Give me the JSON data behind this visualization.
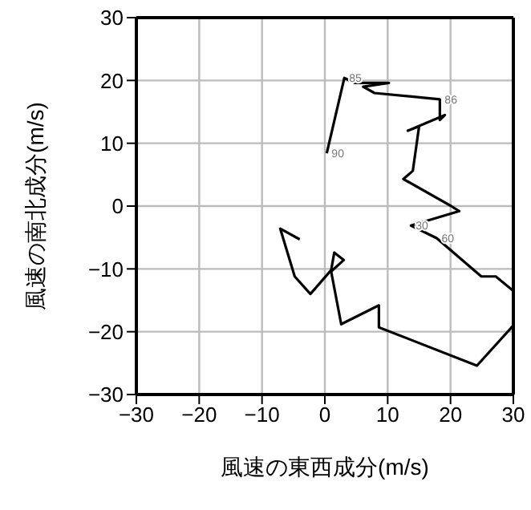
{
  "chart_data": {
    "type": "line",
    "xlabel": "風速の東西成分(m/s)",
    "ylabel": "風速の南北成分(m/s)",
    "x": [
      0.3,
      3.1,
      4.8,
      10.2,
      6.1,
      7.9,
      18.3,
      18.3,
      19.1,
      13.2,
      15,
      14,
      12.5,
      20.1,
      21.4,
      13.7,
      17.8,
      24.9,
      27.2,
      30,
      30,
      24.2,
      8.6,
      8.6,
      2.6,
      1,
      3,
      1.5,
      1,
      -2.3,
      -4.8,
      -7.1,
      -4
    ],
    "values": [
      8.4,
      20.4,
      19.6,
      19.6,
      19,
      18,
      17,
      13.7,
      14.5,
      12,
      12.7,
      5.6,
      4.3,
      0,
      -0.8,
      -3.1,
      -5.1,
      -11.2,
      -11.2,
      -13.5,
      -19,
      -25.4,
      -19.3,
      -15.8,
      -18.8,
      -10.4,
      -8.6,
      -7.4,
      -10.2,
      -14,
      -11.2,
      -3.6,
      -5.3
    ],
    "color": "#000000",
    "xlim": [
      -30,
      30
    ],
    "ylim": [
      -30,
      30
    ],
    "xticks": [
      -30,
      -20,
      -10,
      0,
      10,
      20,
      30
    ],
    "yticks": [
      -30,
      -20,
      -10,
      0,
      10,
      20,
      30
    ],
    "grid": true,
    "marker": "none",
    "annotations": [
      {
        "text": "85",
        "x": 3.1,
        "y": 20.4
      },
      {
        "text": "86",
        "x": 18.3,
        "y": 17
      },
      {
        "text": "90",
        "x": 0.3,
        "y": 8.4
      },
      {
        "text": "30",
        "x": 13.7,
        "y": -3.1
      },
      {
        "text": "60",
        "x": 17.8,
        "y": -5.1
      }
    ]
  }
}
